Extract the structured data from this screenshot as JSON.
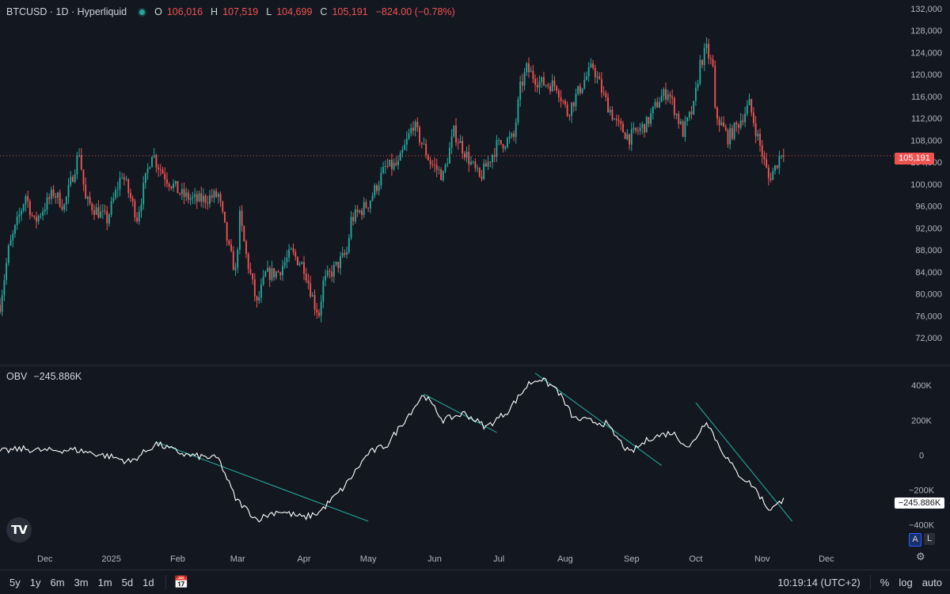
{
  "legend": {
    "symbol": "BTCUSD · 1D · Hyperliquid",
    "o_label": "O",
    "o": "106,016",
    "h_label": "H",
    "h": "107,519",
    "l_label": "L",
    "l": "104,699",
    "c_label": "C",
    "c": "105,191",
    "change": "−824.00 (−0.78%)"
  },
  "obv_legend": {
    "name": "OBV",
    "value": "−245.886K"
  },
  "price_tag": "105,191",
  "obv_tag": "−245.886K",
  "scale_buttons": {
    "auto_scale": "A",
    "log": "L"
  },
  "bottom_bar": {
    "ranges": [
      "5y",
      "1y",
      "6m",
      "3m",
      "1m",
      "5d",
      "1d"
    ],
    "time": "10:19:14 (UTC+2)",
    "percent": "%",
    "log": "log",
    "auto": "auto"
  },
  "colors": {
    "background": "#131720",
    "up": "#26a69a",
    "down": "#ef5350",
    "obv_line": "#ffffff",
    "trendline": "#26a69a"
  },
  "chart_data": [
    {
      "type": "candlestick",
      "title": "BTCUSD · 1D · Hyperliquid",
      "yticks": [
        "132,000",
        "128,000",
        "124,000",
        "120,000",
        "116,000",
        "112,000",
        "108,000",
        "104,000",
        "100,000",
        "96,000",
        "92,000",
        "88,000",
        "84,000",
        "80,000",
        "76,000",
        "72,000"
      ],
      "ylim": [
        70000,
        133000
      ],
      "x_start": "2024-11-10",
      "x_end": "2025-12-31",
      "xticks": [
        {
          "label": "Dec",
          "date": "2024-12-01"
        },
        {
          "label": "2025",
          "date": "2025-01-01"
        },
        {
          "label": "Feb",
          "date": "2025-02-01"
        },
        {
          "label": "Mar",
          "date": "2025-03-01"
        },
        {
          "label": "Apr",
          "date": "2025-04-01"
        },
        {
          "label": "May",
          "date": "2025-05-01"
        },
        {
          "label": "Jun",
          "date": "2025-06-01"
        },
        {
          "label": "Jul",
          "date": "2025-07-01"
        },
        {
          "label": "Aug",
          "date": "2025-08-01"
        },
        {
          "label": "Sep",
          "date": "2025-09-01"
        },
        {
          "label": "Oct",
          "date": "2025-10-01"
        },
        {
          "label": "Nov",
          "date": "2025-11-01"
        },
        {
          "label": "Dec",
          "date": "2025-12-01"
        }
      ],
      "last_price": 105191,
      "close_path": [
        {
          "date": "2024-11-10",
          "close": 78000
        },
        {
          "date": "2024-11-14",
          "close": 88000
        },
        {
          "date": "2024-11-22",
          "close": 98000
        },
        {
          "date": "2024-11-26",
          "close": 93000
        },
        {
          "date": "2024-12-05",
          "close": 98500
        },
        {
          "date": "2024-12-10",
          "close": 96000
        },
        {
          "date": "2024-12-17",
          "close": 106000
        },
        {
          "date": "2024-12-20",
          "close": 97000
        },
        {
          "date": "2024-12-30",
          "close": 93500
        },
        {
          "date": "2025-01-06",
          "close": 102000
        },
        {
          "date": "2025-01-13",
          "close": 94000
        },
        {
          "date": "2025-01-20",
          "close": 106000
        },
        {
          "date": "2025-01-22",
          "close": 104000
        },
        {
          "date": "2025-01-27",
          "close": 101000
        },
        {
          "date": "2025-02-03",
          "close": 98000
        },
        {
          "date": "2025-02-10",
          "close": 97000
        },
        {
          "date": "2025-02-20",
          "close": 98000
        },
        {
          "date": "2025-02-25",
          "close": 88000
        },
        {
          "date": "2025-02-28",
          "close": 84000
        },
        {
          "date": "2025-03-02",
          "close": 94000
        },
        {
          "date": "2025-03-05",
          "close": 87000
        },
        {
          "date": "2025-03-10",
          "close": 78000
        },
        {
          "date": "2025-03-14",
          "close": 83500
        },
        {
          "date": "2025-03-20",
          "close": 84000
        },
        {
          "date": "2025-03-26",
          "close": 87500
        },
        {
          "date": "2025-04-01",
          "close": 85000
        },
        {
          "date": "2025-04-06",
          "close": 78000
        },
        {
          "date": "2025-04-08",
          "close": 76500
        },
        {
          "date": "2025-04-10",
          "close": 82000
        },
        {
          "date": "2025-04-15",
          "close": 84500
        },
        {
          "date": "2025-04-21",
          "close": 87500
        },
        {
          "date": "2025-04-23",
          "close": 93500
        },
        {
          "date": "2025-05-01",
          "close": 96500
        },
        {
          "date": "2025-05-09",
          "close": 103000
        },
        {
          "date": "2025-05-15",
          "close": 103500
        },
        {
          "date": "2025-05-22",
          "close": 111000
        },
        {
          "date": "2025-05-30",
          "close": 104000
        },
        {
          "date": "2025-06-05",
          "close": 101500
        },
        {
          "date": "2025-06-10",
          "close": 109500
        },
        {
          "date": "2025-06-17",
          "close": 104500
        },
        {
          "date": "2025-06-22",
          "close": 101000
        },
        {
          "date": "2025-06-30",
          "close": 107000
        },
        {
          "date": "2025-07-08",
          "close": 108500
        },
        {
          "date": "2025-07-11",
          "close": 117500
        },
        {
          "date": "2025-07-14",
          "close": 121000
        },
        {
          "date": "2025-07-20",
          "close": 118500
        },
        {
          "date": "2025-07-28",
          "close": 118000
        },
        {
          "date": "2025-08-02",
          "close": 113000
        },
        {
          "date": "2025-08-10",
          "close": 119000
        },
        {
          "date": "2025-08-14",
          "close": 121500
        },
        {
          "date": "2025-08-19",
          "close": 116000
        },
        {
          "date": "2025-08-25",
          "close": 111000
        },
        {
          "date": "2025-08-31",
          "close": 108500
        },
        {
          "date": "2025-09-08",
          "close": 111000
        },
        {
          "date": "2025-09-14",
          "close": 115500
        },
        {
          "date": "2025-09-18",
          "close": 117000
        },
        {
          "date": "2025-09-25",
          "close": 109500
        },
        {
          "date": "2025-09-30",
          "close": 114000
        },
        {
          "date": "2025-10-03",
          "close": 122000
        },
        {
          "date": "2025-10-06",
          "close": 124500
        },
        {
          "date": "2025-10-09",
          "close": 121000
        },
        {
          "date": "2025-10-10",
          "close": 113000
        },
        {
          "date": "2025-10-16",
          "close": 108500
        },
        {
          "date": "2025-10-20",
          "close": 110500
        },
        {
          "date": "2025-10-26",
          "close": 114500
        },
        {
          "date": "2025-10-30",
          "close": 108500
        },
        {
          "date": "2025-11-04",
          "close": 101000
        },
        {
          "date": "2025-11-07",
          "close": 103000
        },
        {
          "date": "2025-11-10",
          "close": 106000
        },
        {
          "date": "2025-11-11",
          "close": 105191
        }
      ]
    },
    {
      "type": "line",
      "title": "OBV",
      "yticks": [
        "400K",
        "200K",
        "0",
        "−200K",
        "−400K"
      ],
      "ylim": [
        -430000,
        460000
      ],
      "last_value": -245886,
      "series": [
        {
          "values": [
            {
              "date": "2024-11-10",
              "obv": 20000
            },
            {
              "date": "2024-11-20",
              "obv": 35000
            },
            {
              "date": "2024-12-01",
              "obv": 25000
            },
            {
              "date": "2024-12-15",
              "obv": 30000
            },
            {
              "date": "2025-01-01",
              "obv": -10000
            },
            {
              "date": "2025-01-10",
              "obv": -40000
            },
            {
              "date": "2025-01-22",
              "obv": 65000
            },
            {
              "date": "2025-02-05",
              "obv": 0
            },
            {
              "date": "2025-02-20",
              "obv": -20000
            },
            {
              "date": "2025-02-28",
              "obv": -250000
            },
            {
              "date": "2025-03-10",
              "obv": -370000
            },
            {
              "date": "2025-03-20",
              "obv": -320000
            },
            {
              "date": "2025-04-01",
              "obv": -360000
            },
            {
              "date": "2025-04-08",
              "obv": -330000
            },
            {
              "date": "2025-04-20",
              "obv": -180000
            },
            {
              "date": "2025-05-01",
              "obv": 10000
            },
            {
              "date": "2025-05-10",
              "obv": 60000
            },
            {
              "date": "2025-05-15",
              "obv": 150000
            },
            {
              "date": "2025-05-27",
              "obv": 350000
            },
            {
              "date": "2025-06-05",
              "obv": 200000
            },
            {
              "date": "2025-06-15",
              "obv": 240000
            },
            {
              "date": "2025-06-25",
              "obv": 160000
            },
            {
              "date": "2025-07-05",
              "obv": 250000
            },
            {
              "date": "2025-07-15",
              "obv": 410000
            },
            {
              "date": "2025-07-20",
              "obv": 440000
            },
            {
              "date": "2025-07-28",
              "obv": 380000
            },
            {
              "date": "2025-08-05",
              "obv": 210000
            },
            {
              "date": "2025-08-20",
              "obv": 180000
            },
            {
              "date": "2025-08-31",
              "obv": 10000
            },
            {
              "date": "2025-09-10",
              "obv": 100000
            },
            {
              "date": "2025-09-20",
              "obv": 130000
            },
            {
              "date": "2025-09-28",
              "obv": 40000
            },
            {
              "date": "2025-10-06",
              "obv": 200000
            },
            {
              "date": "2025-10-12",
              "obv": 50000
            },
            {
              "date": "2025-10-20",
              "obv": -100000
            },
            {
              "date": "2025-10-28",
              "obv": -180000
            },
            {
              "date": "2025-11-04",
              "obv": -310000
            },
            {
              "date": "2025-11-08",
              "obv": -290000
            },
            {
              "date": "2025-11-11",
              "obv": -245886
            }
          ]
        }
      ],
      "trendlines": [
        {
          "from": {
            "date": "2025-01-22",
            "obv": 75000
          },
          "to": {
            "date": "2025-05-01",
            "obv": -380000
          }
        },
        {
          "from": {
            "date": "2025-05-27",
            "obv": 350000
          },
          "to": {
            "date": "2025-06-30",
            "obv": 130000
          }
        },
        {
          "from": {
            "date": "2025-07-18",
            "obv": 470000
          },
          "to": {
            "date": "2025-09-15",
            "obv": -60000
          }
        },
        {
          "from": {
            "date": "2025-10-01",
            "obv": 300000
          },
          "to": {
            "date": "2025-11-15",
            "obv": -380000
          }
        }
      ]
    }
  ]
}
